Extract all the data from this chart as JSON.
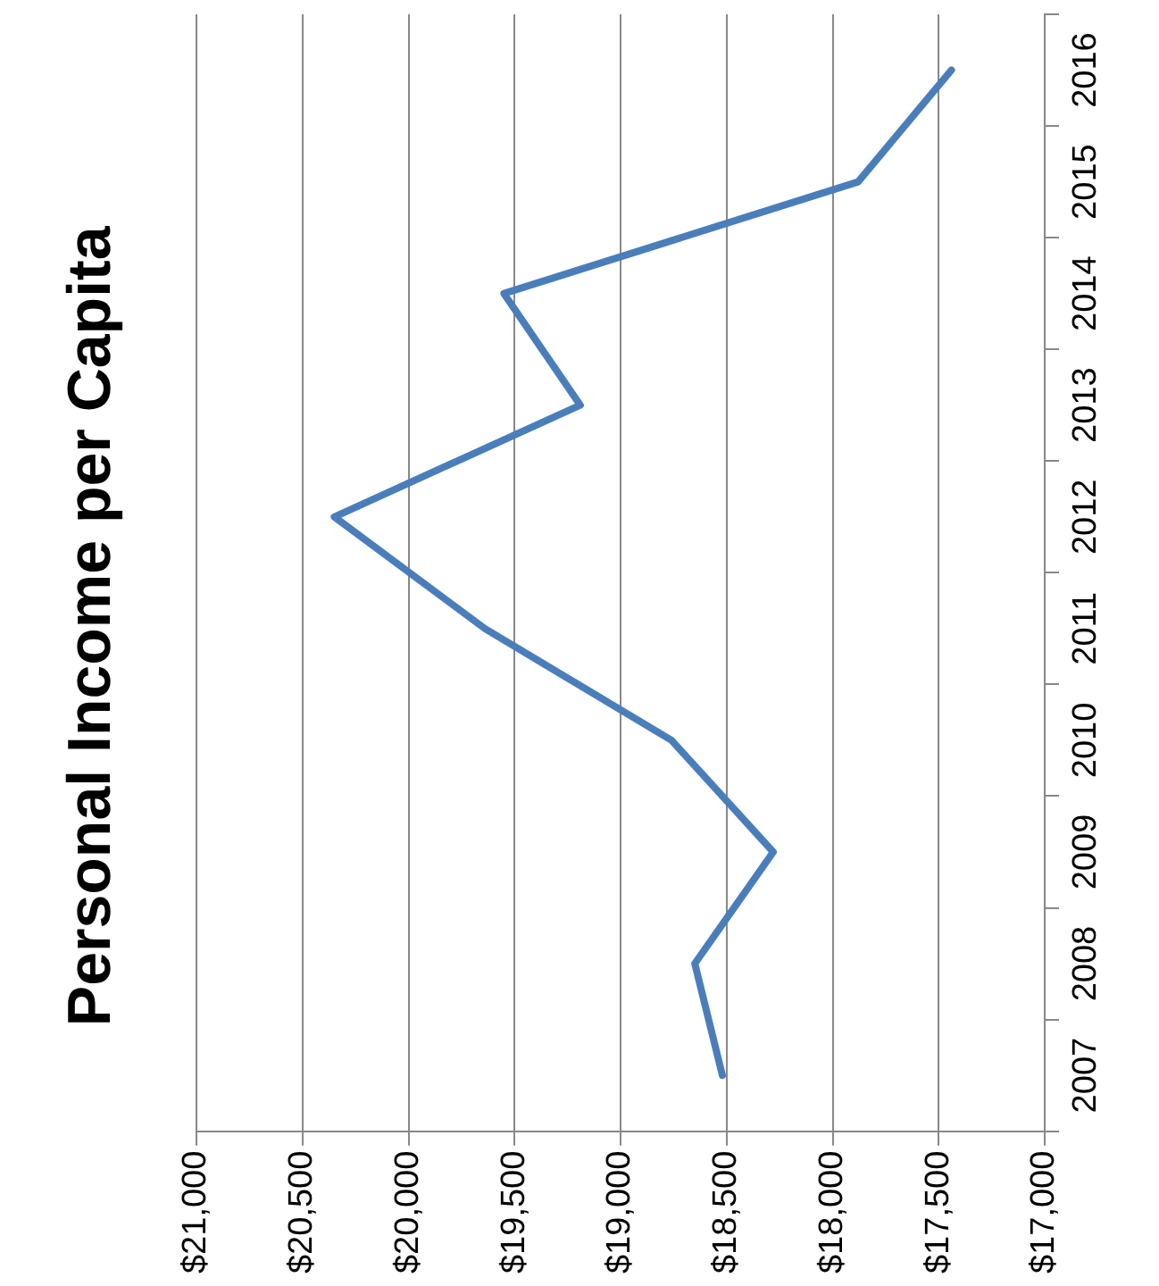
{
  "chart_data": {
    "type": "line",
    "orientation": "horizontal",
    "title": "Personal Income per Capita",
    "categories": [
      "2016",
      "2015",
      "2014",
      "2013",
      "2012",
      "2011",
      "2010",
      "2009",
      "2008",
      "2007"
    ],
    "series": [
      {
        "color": "#4a7ebb",
        "values": [
          17440,
          17880,
          19550,
          19190,
          20350,
          19640,
          18760,
          18280,
          18650,
          18520
        ]
      }
    ],
    "xlim": [
      21000,
      17000
    ],
    "xticks": [
      {
        "value": 21000,
        "label": "$21,000"
      },
      {
        "value": 20500,
        "label": "$20,500"
      },
      {
        "value": 20000,
        "label": "$20,000"
      },
      {
        "value": 19500,
        "label": "$19,500"
      },
      {
        "value": 19000,
        "label": "$19,000"
      },
      {
        "value": 18500,
        "label": "$18,500"
      },
      {
        "value": 18000,
        "label": "$18,000"
      },
      {
        "value": 17500,
        "label": "$17,500"
      },
      {
        "value": 17000,
        "label": "$17,000"
      }
    ],
    "grid": "x",
    "legend": false,
    "marker": "none",
    "line_style": "solid"
  }
}
